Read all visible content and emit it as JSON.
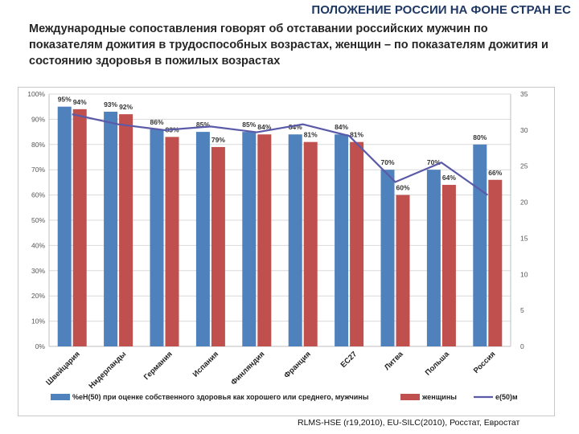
{
  "header": {
    "title": "ПОЛОЖЕНИЕ РОССИИ НА ФОНЕ СТРАН ЕС",
    "subtitle": "Международные сопоставления говорят об отставании российских мужчин по показателям дожития в трудоспособных возрастах, женщин – по показателям дожития и состоянию здоровья в пожилых возрастах"
  },
  "source": "RLMS-HSE (r19,2010), EU-SILC(2010), Росстат, Евростат",
  "colors": {
    "men": "#4f81bd",
    "women": "#c0504d",
    "line": "#5a5aa8",
    "grid": "#d9d9d9"
  },
  "chart_data": {
    "type": "bar",
    "categories": [
      "Швейцария",
      "Нидерланды",
      "Германия",
      "Испания",
      "Финляндия",
      "Франция",
      "EC27",
      "Литва",
      "Польша",
      "Россия"
    ],
    "series": [
      {
        "name": "%eH(50) при оценке собственного здоровья как хорошего или среднего, мужчины",
        "type": "bar",
        "axis": "left",
        "values": [
          95,
          93,
          86,
          85,
          85,
          84,
          84,
          70,
          70,
          80
        ],
        "labels": [
          "95%",
          "93%",
          "86%",
          "85%",
          "85%",
          "84%",
          "84%",
          "70%",
          "70%",
          "80%"
        ]
      },
      {
        "name": "женщины",
        "type": "bar",
        "axis": "left",
        "values": [
          94,
          92,
          83,
          79,
          84,
          81,
          81,
          60,
          64,
          66
        ],
        "labels": [
          "94%",
          "92%",
          "83%",
          "79%",
          "84%",
          "81%",
          "81%",
          "60%",
          "64%",
          "66%"
        ]
      },
      {
        "name": "e(50)м",
        "type": "line",
        "axis": "right",
        "values": [
          32.2,
          30.8,
          30.0,
          30.5,
          29.7,
          30.8,
          29.2,
          22.8,
          25.5,
          21.0
        ]
      }
    ],
    "y_left": {
      "min": 0,
      "max": 100,
      "ticks": [
        "0%",
        "10%",
        "20%",
        "30%",
        "40%",
        "50%",
        "60%",
        "70%",
        "80%",
        "90%",
        "100%"
      ]
    },
    "y_right": {
      "min": 0,
      "max": 35,
      "ticks": [
        "0",
        "5",
        "10",
        "15",
        "20",
        "25",
        "30",
        "35"
      ]
    },
    "grid": true,
    "legend_position": "bottom"
  }
}
